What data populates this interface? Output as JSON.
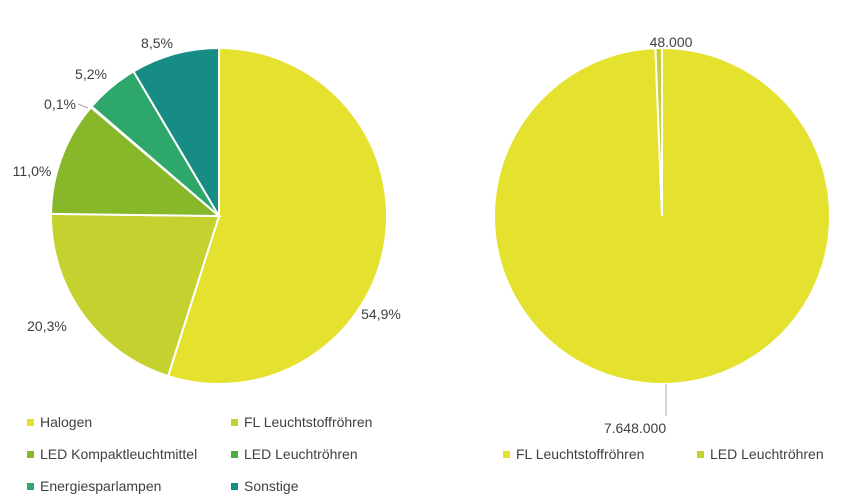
{
  "chart_data": [
    {
      "type": "pie",
      "slices": [
        {
          "name": "Halogen",
          "value": 54.9,
          "label": "54,9%",
          "color": "#e4e22f"
        },
        {
          "name": "FL Leuchtstoffröhren",
          "value": 20.3,
          "label": "20,3%",
          "color": "#c4d12e"
        },
        {
          "name": "LED Kompaktleuchtmittel",
          "value": 11.0,
          "label": "11,0%",
          "color": "#86b82a"
        },
        {
          "name": "LED Leuchtröhren",
          "value": 0.1,
          "label": "0,1%",
          "color": "#4eab44"
        },
        {
          "name": "Energiesparlampen",
          "value": 5.2,
          "label": "5,2%",
          "color": "#2ea86a"
        },
        {
          "name": "Sonstige",
          "value": 8.5,
          "label": "8,5%",
          "color": "#178c84"
        }
      ],
      "legend_position": "bottom"
    },
    {
      "type": "pie",
      "slices": [
        {
          "name": "FL Leuchtstoffröhren",
          "value": 7648000,
          "label": "7.648.000",
          "color": "#e4e22f"
        },
        {
          "name": "LED Leuchtröhren",
          "value": 48000,
          "label": "48.000",
          "color": "#c4d12e"
        }
      ],
      "legend_position": "bottom"
    }
  ]
}
